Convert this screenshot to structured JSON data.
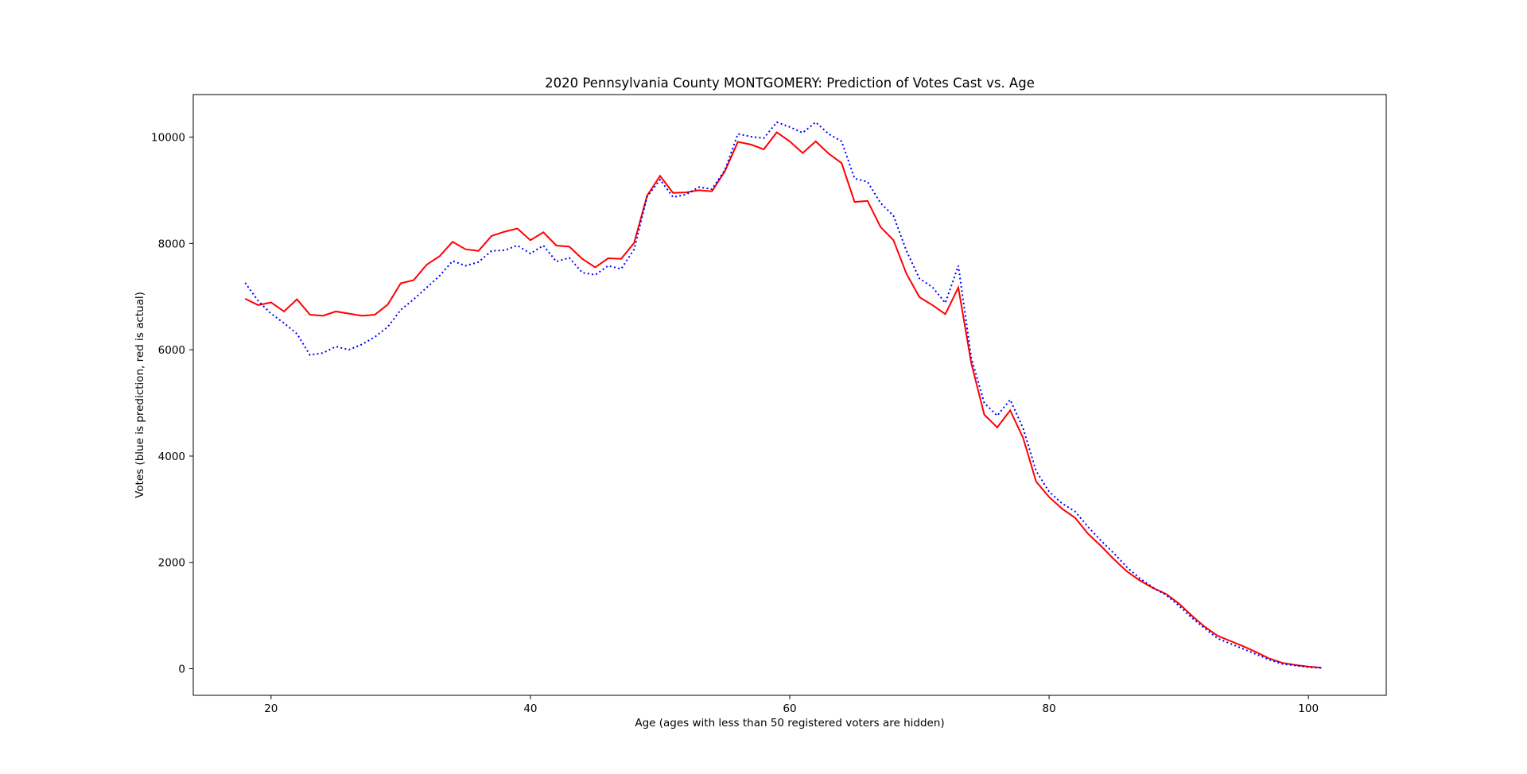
{
  "chart_data": {
    "type": "line",
    "title": "2020 Pennsylvania County MONTGOMERY: Prediction of Votes Cast vs. Age",
    "xlabel": "Age (ages with less than 50 registered voters are hidden)",
    "ylabel": "Votes (blue is prediction, red is actual)",
    "xlim": [
      14,
      106
    ],
    "ylim": [
      -500,
      10800
    ],
    "xticks": [
      20,
      40,
      60,
      80,
      100
    ],
    "yticks": [
      0,
      2000,
      4000,
      6000,
      8000,
      10000
    ],
    "grid": false,
    "x": [
      18,
      19,
      20,
      21,
      22,
      23,
      24,
      25,
      26,
      27,
      28,
      29,
      30,
      31,
      32,
      33,
      34,
      35,
      36,
      37,
      38,
      39,
      40,
      41,
      42,
      43,
      44,
      45,
      46,
      47,
      48,
      49,
      50,
      51,
      52,
      53,
      54,
      55,
      56,
      57,
      58,
      59,
      60,
      61,
      62,
      63,
      64,
      65,
      66,
      67,
      68,
      69,
      70,
      71,
      72,
      73,
      74,
      75,
      76,
      77,
      78,
      79,
      80,
      81,
      82,
      83,
      84,
      85,
      86,
      87,
      88,
      89,
      90,
      91,
      92,
      93,
      94,
      95,
      96,
      97,
      98,
      99,
      100,
      101
    ],
    "series": [
      {
        "color": "#ff0000",
        "line_style": "solid",
        "values": [
          6960,
          6840,
          6890,
          6720,
          6950,
          6660,
          6640,
          6720,
          6680,
          6640,
          6660,
          6850,
          7250,
          7310,
          7600,
          7760,
          8030,
          7890,
          7860,
          8140,
          8220,
          8280,
          8060,
          8210,
          7960,
          7940,
          7710,
          7550,
          7720,
          7710,
          8010,
          8900,
          9270,
          8950,
          8960,
          9000,
          8980,
          9360,
          9910,
          9860,
          9770,
          10090,
          9920,
          9700,
          9920,
          9690,
          9510,
          8780,
          8800,
          8310,
          8060,
          7430,
          6990,
          6840,
          6670,
          7170,
          5750,
          4780,
          4540,
          4860,
          4340,
          3520,
          3230,
          3010,
          2840,
          2540,
          2310,
          2060,
          1830,
          1660,
          1520,
          1410,
          1230,
          1000,
          790,
          620,
          520,
          420,
          310,
          190,
          110,
          70,
          40,
          20
        ]
      },
      {
        "color": "#0000ff",
        "line_style": "dotted",
        "values": [
          7260,
          6920,
          6680,
          6500,
          6300,
          5900,
          5940,
          6060,
          6000,
          6100,
          6240,
          6430,
          6750,
          6950,
          7170,
          7390,
          7670,
          7580,
          7650,
          7860,
          7870,
          7960,
          7810,
          7960,
          7660,
          7730,
          7450,
          7410,
          7580,
          7520,
          7890,
          8880,
          9200,
          8870,
          8920,
          9060,
          9020,
          9380,
          10060,
          10010,
          9980,
          10280,
          10190,
          10080,
          10280,
          10060,
          9920,
          9220,
          9160,
          8760,
          8520,
          7860,
          7340,
          7180,
          6880,
          7580,
          5850,
          5000,
          4760,
          5060,
          4520,
          3720,
          3330,
          3110,
          2960,
          2670,
          2410,
          2170,
          1910,
          1700,
          1530,
          1390,
          1190,
          960,
          760,
          570,
          470,
          370,
          270,
          170,
          90,
          60,
          30,
          15
        ]
      }
    ]
  }
}
